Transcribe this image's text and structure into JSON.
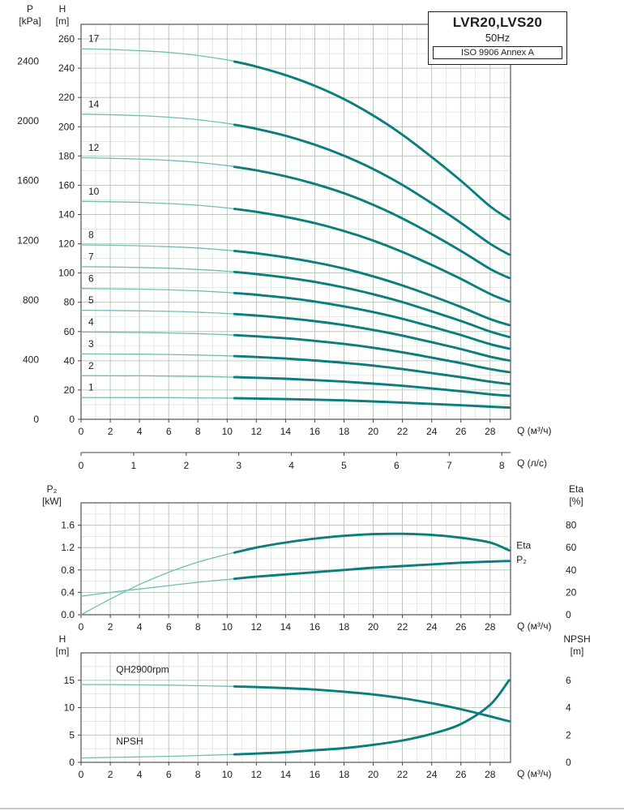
{
  "title": {
    "model": "LVR20,LVS20",
    "frequency": "50Hz",
    "standard": "ISO 9906 Annex A"
  },
  "axes_labels": {
    "p_outer": [
      "P",
      "[kPa]"
    ],
    "h_inner": [
      "H",
      "[m]"
    ],
    "q_m3h_main": "Q (м³/ч)",
    "q_ls": "Q (л/с)",
    "p2_left": [
      "P₂",
      "[kW]"
    ],
    "eta_right": [
      "Eta",
      "[%]"
    ],
    "q_m3h_power": "Q (м³/ч)",
    "h_npsh_left": [
      "H",
      "[m]"
    ],
    "npsh_right": [
      "NPSH",
      "[m]"
    ],
    "q_m3h_npsh": "Q (м³/ч)"
  },
  "colors": {
    "curve_thick": "#0b7d7d",
    "curve_thin": "#72bcb5",
    "grid_major": "#b2bfb2",
    "grid_minor": "#d9e1d9",
    "axis": "#444444",
    "text": "#1f1f1f"
  },
  "chart_data": [
    {
      "id": "main",
      "type": "line",
      "x": {
        "min": 0,
        "max": 29.4,
        "tick_values": [
          0,
          2,
          4,
          6,
          8,
          10,
          12,
          14,
          16,
          18,
          20,
          22,
          24,
          26,
          28
        ],
        "minor_step": 1,
        "label": "Q (м³/ч)"
      },
      "x2": {
        "tick_values": [
          0,
          1,
          2,
          3,
          4,
          5,
          6,
          7,
          8
        ],
        "factor": 3.6,
        "label": "Q (л/с)"
      },
      "y_left": {
        "min": 0,
        "max": 270,
        "tick_values": [
          0,
          20,
          40,
          60,
          80,
          100,
          120,
          140,
          160,
          180,
          200,
          220,
          240,
          260
        ],
        "minor_step": 10,
        "label": "H [m]"
      },
      "p_axis": {
        "tick_values": [
          0,
          400,
          800,
          1200,
          1600,
          2000,
          2400
        ],
        "m_per_kpa": 0.10197,
        "label": "P [kPa]"
      },
      "x_points": [
        0,
        2,
        4,
        6,
        8,
        10,
        12,
        14,
        16,
        18,
        20,
        22,
        24,
        26,
        28,
        29.3
      ],
      "series": [
        {
          "name": "stage-17",
          "label": "17",
          "axis": "left",
          "split": 10.5,
          "label_at": [
            0.5,
            258.0
          ],
          "values": [
            253.3,
            252.8,
            252.0,
            250.8,
            248.7,
            245.7,
            241.1,
            235.3,
            228.0,
            218.9,
            207.7,
            194.5,
            179.3,
            163.1,
            145.6,
            136.8
          ]
        },
        {
          "name": "stage-14",
          "label": "14",
          "axis": "left",
          "split": 10.5,
          "label_at": [
            0.5,
            213.3
          ],
          "values": [
            208.6,
            208.2,
            207.6,
            206.5,
            204.8,
            202.3,
            198.6,
            193.8,
            187.7,
            180.2,
            171.1,
            160.2,
            147.7,
            134.3,
            120.0,
            112.6
          ]
        },
        {
          "name": "stage-12",
          "label": "12",
          "axis": "left",
          "split": 10.5,
          "label_at": [
            0.5,
            183.5
          ],
          "values": [
            178.8,
            178.4,
            177.9,
            177.0,
            175.6,
            173.4,
            170.2,
            166.1,
            160.9,
            154.5,
            146.6,
            137.3,
            126.6,
            115.1,
            102.8,
            96.6
          ]
        },
        {
          "name": "stage-10",
          "label": "10",
          "axis": "left",
          "split": 10.5,
          "label_at": [
            0.5,
            153.7
          ],
          "values": [
            149.0,
            148.7,
            148.3,
            147.5,
            146.3,
            144.5,
            141.8,
            138.4,
            134.1,
            128.7,
            122.2,
            114.4,
            105.5,
            96.0,
            85.7,
            80.5
          ]
        },
        {
          "name": "stage-8",
          "label": "8",
          "axis": "left",
          "split": 10.5,
          "label_at": [
            0.5,
            123.9
          ],
          "values": [
            119.2,
            119.0,
            118.6,
            118.0,
            117.1,
            115.6,
            113.5,
            110.7,
            107.3,
            103.0,
            97.7,
            91.5,
            84.4,
            76.8,
            68.5,
            64.4
          ]
        },
        {
          "name": "stage-7",
          "label": "7",
          "axis": "left",
          "split": 10.5,
          "label_at": [
            0.5,
            109.0
          ],
          "values": [
            104.3,
            104.1,
            103.8,
            103.3,
            102.4,
            101.2,
            99.3,
            96.9,
            93.9,
            90.1,
            85.5,
            80.1,
            73.8,
            67.2,
            60.0,
            56.3
          ]
        },
        {
          "name": "stage-6",
          "label": "6",
          "axis": "left",
          "split": 10.5,
          "label_at": [
            0.5,
            94.1
          ],
          "values": [
            89.4,
            89.2,
            89.0,
            88.5,
            87.8,
            86.7,
            85.1,
            83.1,
            80.5,
            77.2,
            73.3,
            68.7,
            63.3,
            57.6,
            51.4,
            48.3
          ]
        },
        {
          "name": "stage-5",
          "label": "5",
          "axis": "left",
          "split": 10.5,
          "label_at": [
            0.5,
            79.2
          ],
          "values": [
            74.5,
            74.4,
            74.1,
            73.8,
            73.2,
            72.3,
            70.9,
            69.2,
            67.1,
            64.4,
            61.1,
            57.2,
            52.7,
            48.0,
            42.8,
            40.2
          ]
        },
        {
          "name": "stage-4",
          "label": "4",
          "axis": "left",
          "split": 10.5,
          "label_at": [
            0.5,
            64.3
          ],
          "values": [
            59.6,
            59.5,
            59.3,
            59.0,
            58.5,
            57.8,
            56.7,
            55.4,
            53.6,
            51.5,
            48.9,
            45.8,
            42.2,
            38.4,
            34.3,
            32.2
          ]
        },
        {
          "name": "stage-3",
          "label": "3",
          "axis": "left",
          "split": 10.5,
          "label_at": [
            0.5,
            49.4
          ],
          "values": [
            44.7,
            44.6,
            44.5,
            44.3,
            43.9,
            43.4,
            42.6,
            41.5,
            40.2,
            38.6,
            36.7,
            34.3,
            31.6,
            28.8,
            25.7,
            24.1
          ]
        },
        {
          "name": "stage-2",
          "label": "2",
          "axis": "left",
          "split": 10.5,
          "label_at": [
            0.5,
            34.5
          ],
          "values": [
            29.8,
            29.7,
            29.7,
            29.5,
            29.3,
            28.9,
            28.4,
            27.7,
            26.8,
            25.7,
            24.4,
            22.9,
            21.1,
            19.2,
            17.1,
            16.1
          ]
        },
        {
          "name": "stage-1",
          "label": "1",
          "axis": "left",
          "split": 10.5,
          "label_at": [
            0.5,
            19.6
          ],
          "values": [
            14.9,
            14.9,
            14.8,
            14.8,
            14.6,
            14.5,
            14.2,
            13.8,
            13.4,
            12.9,
            12.2,
            11.4,
            10.5,
            9.6,
            8.6,
            8.0
          ]
        }
      ]
    },
    {
      "id": "power",
      "type": "line",
      "x": {
        "min": 0,
        "max": 29.4,
        "tick_values": [
          0,
          2,
          4,
          6,
          8,
          10,
          12,
          14,
          16,
          18,
          20,
          22,
          24,
          26,
          28
        ],
        "minor_step": 1,
        "label": "Q (м³/ч)"
      },
      "y_left": {
        "min": 0,
        "max": 2,
        "tick_values": [
          0,
          0.4,
          0.8,
          1.2,
          1.6
        ],
        "tick_labels": [
          "0.0",
          "0.4",
          "0.8",
          "1.2",
          "1.6"
        ],
        "minor_step": 0.2,
        "label": "P₂ [kW]"
      },
      "y_right": {
        "min": 0,
        "max": 100,
        "tick_values": [
          0,
          20,
          40,
          60,
          80
        ],
        "label": "Eta [%]"
      },
      "x_points": [
        0,
        2,
        4,
        6,
        8,
        10,
        12,
        14,
        16,
        18,
        20,
        22,
        24,
        26,
        28,
        29.3
      ],
      "series": [
        {
          "name": "eta-curve",
          "label": "Eta",
          "axis": "right",
          "split": 10.5,
          "label_at": [
            29.8,
            59
          ],
          "values": [
            0,
            14,
            27,
            38,
            47,
            54,
            60,
            64.5,
            68,
            70.5,
            72,
            72.3,
            71.3,
            68.8,
            64.5,
            57.5
          ]
        },
        {
          "name": "p2-curve",
          "label": "P₂",
          "axis": "left",
          "split": 10.5,
          "label_at": [
            29.8,
            0.93
          ],
          "values": [
            0.33,
            0.4,
            0.46,
            0.52,
            0.58,
            0.63,
            0.68,
            0.72,
            0.76,
            0.8,
            0.84,
            0.87,
            0.9,
            0.93,
            0.95,
            0.96
          ]
        }
      ]
    },
    {
      "id": "npsh",
      "type": "line",
      "x": {
        "min": 0,
        "max": 29.4,
        "tick_values": [
          0,
          2,
          4,
          6,
          8,
          10,
          12,
          14,
          16,
          18,
          20,
          22,
          24,
          26,
          28
        ],
        "minor_step": 1,
        "label": "Q (м³/ч)"
      },
      "y_left": {
        "min": 0,
        "max": 20,
        "tick_values": [
          0,
          5,
          10,
          15
        ],
        "minor_step": 2.5,
        "label": "H [m]"
      },
      "y_right": {
        "min": 0,
        "max": 8,
        "tick_values": [
          0,
          2,
          4,
          6
        ],
        "label": "NPSH [m]"
      },
      "x_points": [
        0,
        2,
        4,
        6,
        8,
        10,
        12,
        14,
        16,
        18,
        20,
        22,
        24,
        26,
        28,
        29.3
      ],
      "series": [
        {
          "name": "qh-2900rpm-curve",
          "label": "QH2900rpm",
          "axis": "left",
          "split": 10.5,
          "label_at": [
            2.4,
            16.4
          ],
          "values": [
            14.2,
            14.2,
            14.15,
            14.1,
            14.0,
            13.9,
            13.75,
            13.55,
            13.3,
            12.9,
            12.4,
            11.7,
            10.8,
            9.7,
            8.4,
            7.5
          ]
        },
        {
          "name": "npsh-curve",
          "label": "NPSH",
          "axis": "right",
          "split": 10.5,
          "label_at": [
            2.4,
            1.3
          ],
          "values": [
            0.32,
            0.36,
            0.4,
            0.44,
            0.5,
            0.56,
            0.64,
            0.74,
            0.88,
            1.04,
            1.28,
            1.6,
            2.08,
            2.8,
            4.2,
            6.0
          ]
        }
      ]
    }
  ]
}
